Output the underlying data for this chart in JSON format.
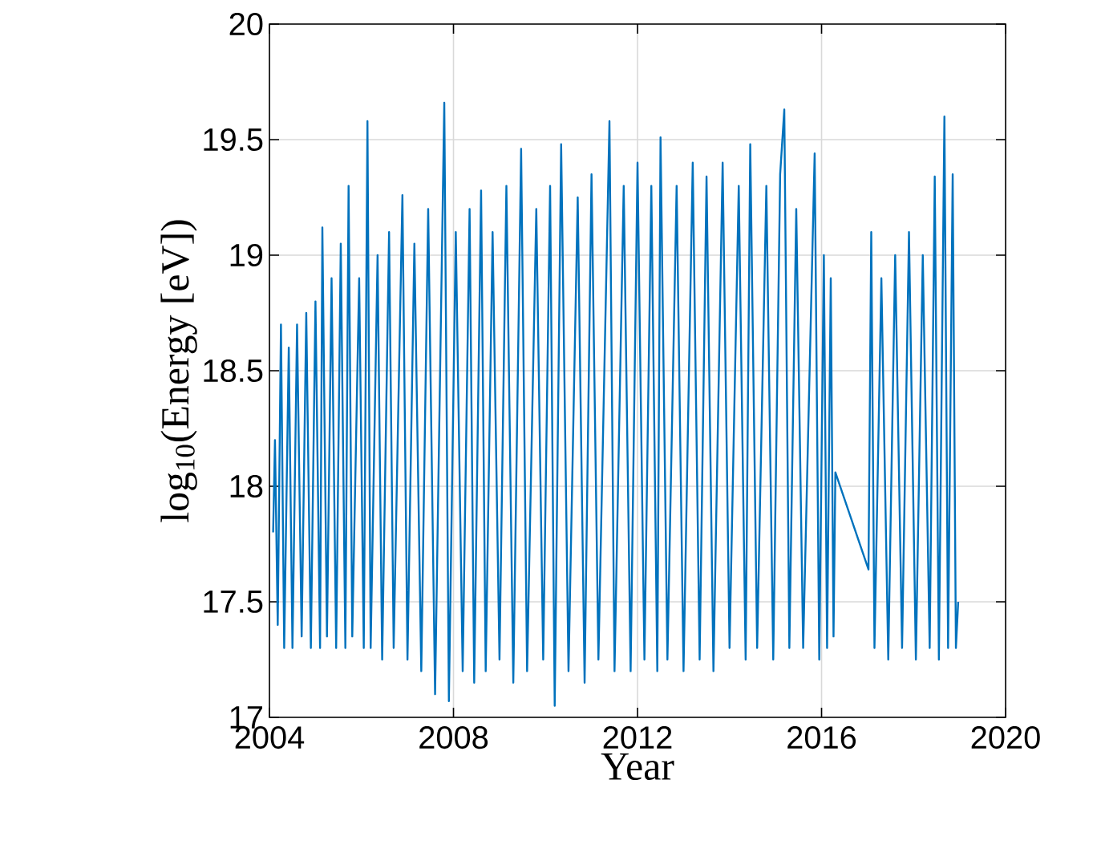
{
  "chart_data": {
    "type": "line",
    "xlabel": "Year",
    "ylabel": "log$_{10}$(Energy [eV])",
    "xlim": [
      2004,
      2020
    ],
    "xticks": [
      2004,
      2008,
      2012,
      2016,
      2020
    ],
    "ylim": [
      17,
      20
    ],
    "yticks": [
      17,
      17.5,
      18,
      18.5,
      19,
      19.5,
      20
    ],
    "grid": true,
    "series": [
      {
        "color": "#0072bd",
        "x": [
          2004.08,
          2004.12,
          2004.18,
          2004.25,
          2004.32,
          2004.42,
          2004.5,
          2004.6,
          2004.7,
          2004.8,
          2004.9,
          2005.0,
          2005.1,
          2005.15,
          2005.25,
          2005.35,
          2005.45,
          2005.55,
          2005.65,
          2005.72,
          2005.8,
          2005.95,
          2006.05,
          2006.13,
          2006.2,
          2006.35,
          2006.45,
          2006.6,
          2006.7,
          2006.89,
          2007.0,
          2007.15,
          2007.3,
          2007.45,
          2007.6,
          2007.8,
          2007.9,
          2008.05,
          2008.2,
          2008.35,
          2008.45,
          2008.6,
          2008.7,
          2008.85,
          2009.0,
          2009.15,
          2009.3,
          2009.47,
          2009.6,
          2009.8,
          2009.95,
          2010.1,
          2010.2,
          2010.34,
          2010.5,
          2010.7,
          2010.85,
          2011.0,
          2011.15,
          2011.39,
          2011.5,
          2011.7,
          2011.85,
          2012.0,
          2012.15,
          2012.3,
          2012.43,
          2012.5,
          2012.65,
          2012.85,
          2013.0,
          2013.2,
          2013.35,
          2013.5,
          2013.65,
          2013.85,
          2014.0,
          2014.2,
          2014.35,
          2014.45,
          2014.6,
          2014.8,
          2014.95,
          2015.1,
          2015.19,
          2015.3,
          2015.45,
          2015.6,
          2015.85,
          2015.95,
          2016.05,
          2016.12,
          2016.2,
          2016.26,
          2016.3,
          2017.02,
          2017.08,
          2017.15,
          2017.3,
          2017.45,
          2017.6,
          2017.75,
          2017.9,
          2018.05,
          2018.2,
          2018.35,
          2018.46,
          2018.55,
          2018.67,
          2018.75,
          2018.85,
          2018.92,
          2018.97
        ],
        "values": [
          17.8,
          18.2,
          17.4,
          18.7,
          17.3,
          18.6,
          17.3,
          18.7,
          17.35,
          18.75,
          17.3,
          18.8,
          17.3,
          19.12,
          17.35,
          18.9,
          17.3,
          19.05,
          17.3,
          19.3,
          17.35,
          18.9,
          17.3,
          19.58,
          17.3,
          19.0,
          17.25,
          19.1,
          17.3,
          19.26,
          17.25,
          19.05,
          17.2,
          19.2,
          17.1,
          19.66,
          17.07,
          19.1,
          17.2,
          19.2,
          17.15,
          19.28,
          17.2,
          19.1,
          17.25,
          19.3,
          17.15,
          19.46,
          17.2,
          19.2,
          17.25,
          19.3,
          17.05,
          19.48,
          17.2,
          19.25,
          17.15,
          19.35,
          17.25,
          19.58,
          17.2,
          19.3,
          17.2,
          19.4,
          17.25,
          19.3,
          17.2,
          19.51,
          17.25,
          19.3,
          17.2,
          19.4,
          17.25,
          19.34,
          17.2,
          19.4,
          17.3,
          19.3,
          17.25,
          19.48,
          17.3,
          19.3,
          17.25,
          19.35,
          19.63,
          17.3,
          19.2,
          17.3,
          19.44,
          17.25,
          19.0,
          17.3,
          18.9,
          17.35,
          18.06,
          17.64,
          19.1,
          17.3,
          18.9,
          17.25,
          19.0,
          17.3,
          19.1,
          17.25,
          19.0,
          17.3,
          19.34,
          17.25,
          19.6,
          17.3,
          19.35,
          17.3,
          17.5
        ]
      }
    ]
  }
}
